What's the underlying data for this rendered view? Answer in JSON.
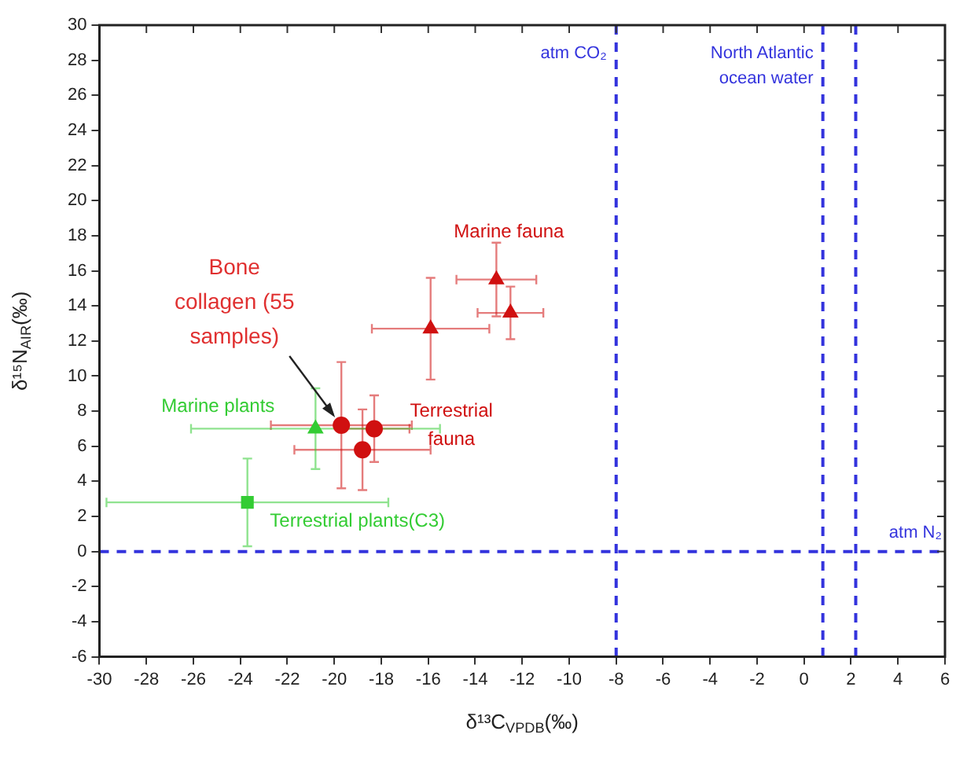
{
  "chart_data": {
    "type": "scatter",
    "xlabel": "δ¹³C$_{VPDB}$(‰)",
    "ylabel": "δ¹⁵N$_{AIR}$(‰)",
    "xlim": [
      -30,
      6
    ],
    "xticks": [
      -30,
      -28,
      -26,
      -24,
      -22,
      -20,
      -18,
      -16,
      -14,
      -12,
      -10,
      -8,
      -6,
      -4,
      -2,
      0,
      2,
      4,
      6
    ],
    "ylim": [
      -6,
      30
    ],
    "yticks": [
      -6,
      -4,
      -2,
      0,
      2,
      4,
      6,
      8,
      10,
      12,
      14,
      16,
      18,
      20,
      22,
      24,
      26,
      28,
      30
    ],
    "series": [
      {
        "name": "Marine fauna",
        "color": "#d01010",
        "marker": "triangle",
        "x": [
          -13.1,
          -12.5,
          -15.9
        ],
        "values": [
          15.5,
          13.6,
          12.7
        ],
        "xerrors": [
          1.7,
          1.4,
          2.5
        ],
        "errors": [
          2.1,
          1.5,
          2.9
        ]
      },
      {
        "name": "Terrestrial fauna",
        "color": "#d01010",
        "marker": "circle",
        "x": [
          -19.7,
          -18.3,
          -18.8
        ],
        "values": [
          7.2,
          7.0,
          5.8
        ],
        "xerrors": [
          3,
          1.5,
          2.9
        ],
        "errors": [
          3.6,
          1.9,
          2.3
        ]
      },
      {
        "name": "Marine plants",
        "color": "#33cc33",
        "marker": "triangle",
        "x": [
          -20.8
        ],
        "values": [
          7.0
        ],
        "xerrors": [
          5.3
        ],
        "errors": [
          2.3
        ]
      },
      {
        "name": "Terrestrial plants(C3)",
        "color": "#33cc33",
        "marker": "square",
        "x": [
          -23.7
        ],
        "values": [
          2.8
        ],
        "xerrors": [
          6
        ],
        "errors": [
          2.5
        ]
      }
    ],
    "ref_lines": [
      {
        "axis": "x",
        "value": -8,
        "label": "atm CO₂",
        "color": "#3333dd",
        "line_style": "dashed"
      },
      {
        "axis": "x",
        "value": 0.8,
        "label": "North Atlantic ocean water",
        "color": "#3333dd",
        "line_style": "dashed"
      },
      {
        "axis": "x",
        "value": 2.2,
        "color": "#3333dd",
        "line_style": "dashed"
      },
      {
        "axis": "y",
        "value": 0,
        "label": "atm N₂",
        "color": "#3333dd",
        "line_style": "dashed"
      }
    ],
    "annotations": [
      {
        "text": "Bone collagen (55 samples)",
        "x": -19.7,
        "y": 7.2
      }
    ]
  }
}
